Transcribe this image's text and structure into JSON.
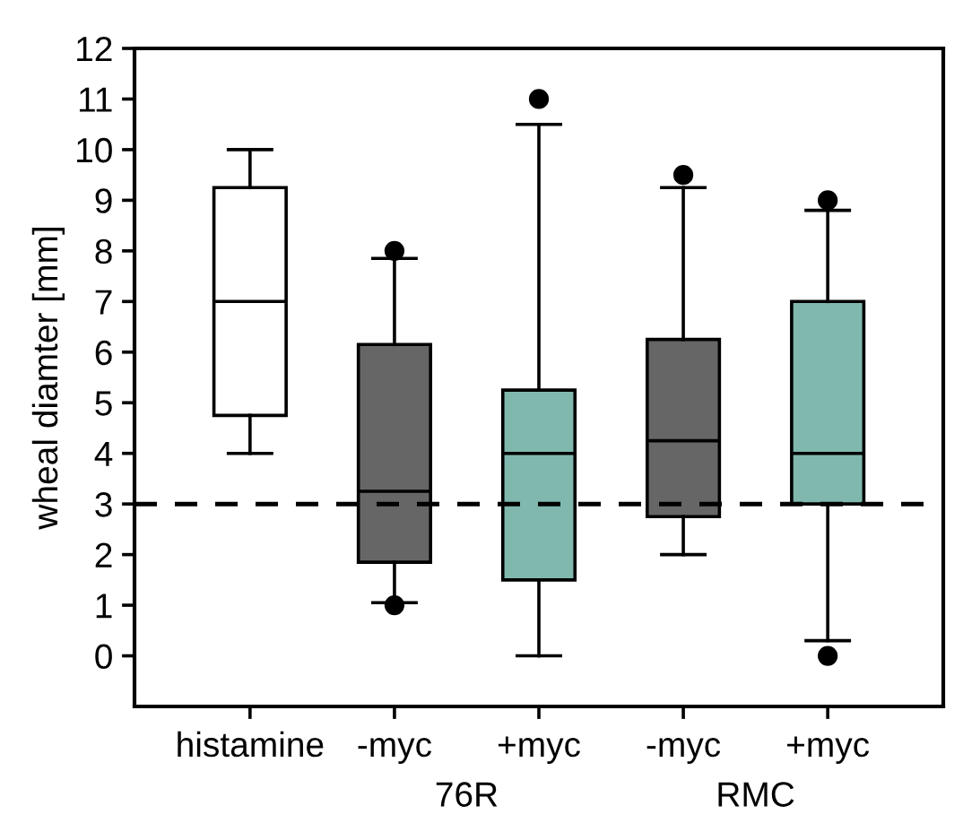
{
  "chart_data": {
    "type": "box",
    "ylabel": "wheal diamter [mm]",
    "categories": [
      "histamine",
      "-myc",
      "+myc",
      "-myc",
      "+myc"
    ],
    "boxes": [
      {
        "low": 4,
        "q1": 4.75,
        "median": 7,
        "q3": 9.25,
        "high": 10
      },
      {
        "low": 1.05,
        "q1": 1.85,
        "median": 3.25,
        "q3": 6.15,
        "high": 7.85,
        "outliers": [
          8,
          1
        ]
      },
      {
        "low": 0,
        "q1": 1.5,
        "median": 4,
        "q3": 5.25,
        "high": 10.5,
        "outliers": [
          11
        ]
      },
      {
        "low": 2,
        "q1": 2.75,
        "median": 4.25,
        "q3": 6.25,
        "high": 9.25,
        "outliers": [
          9.5
        ]
      },
      {
        "low": 0.3,
        "q1": 3,
        "median": 4,
        "q3": 7,
        "high": 8.8,
        "outliers": [
          9,
          0
        ]
      }
    ],
    "colors": [
      "#ffffff",
      "#666666",
      "#80b8ae",
      "#666666",
      "#80b8ae"
    ],
    "ylim": [
      -1,
      12
    ],
    "yticks": [
      0,
      1,
      2,
      3,
      4,
      5,
      6,
      7,
      8,
      9,
      10,
      11,
      12
    ],
    "ref_lines": [
      {
        "axis": "y",
        "value": 3,
        "color": "#000000",
        "line_style": "dashed"
      }
    ],
    "annotations": [
      "76R",
      "RMC"
    ],
    "grid": false,
    "legend": false
  }
}
